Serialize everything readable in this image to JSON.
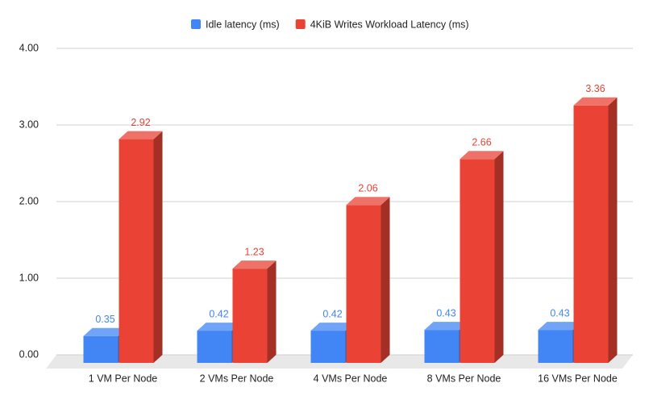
{
  "chart_data": {
    "type": "bar3d",
    "categories": [
      "1 VM Per Node",
      "2 VMs Per Node",
      "4 VMs Per Node",
      "8 VMs Per Node",
      "16 VMs Per Node"
    ],
    "series": [
      {
        "name": "Idle latency (ms)",
        "color": "#4285f4",
        "values": [
          0.35,
          0.42,
          0.42,
          0.43,
          0.43
        ]
      },
      {
        "name": "4KiB Writes Workload Latency (ms)",
        "color": "#ea4335",
        "values": [
          2.92,
          1.23,
          2.06,
          2.66,
          3.36
        ]
      }
    ],
    "ylim": [
      0,
      4
    ],
    "yticks": [
      {
        "value": 0,
        "label": "0.00"
      },
      {
        "value": 1,
        "label": "1.00"
      },
      {
        "value": 2,
        "label": "2.00"
      },
      {
        "value": 3,
        "label": "3.00"
      },
      {
        "value": 4,
        "label": "4.00"
      }
    ],
    "grid": true,
    "legend": "top"
  }
}
